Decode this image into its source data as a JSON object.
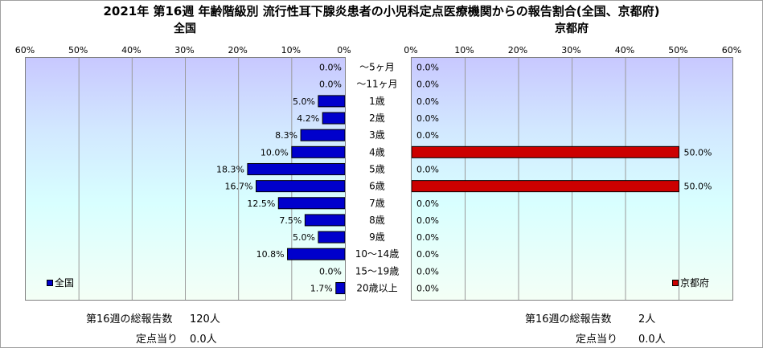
{
  "title": "2021年 第16週 年齢階級別 流行性耳下腺炎患者の小児科定点医療機関からの報告割合(全国、京都府)",
  "chart_data": [
    {
      "type": "bar",
      "orientation": "horizontal",
      "title": "全国",
      "categories": [
        "～5ヶ月",
        "～11ヶ月",
        "1歳",
        "2歳",
        "3歳",
        "4歳",
        "5歳",
        "6歳",
        "7歳",
        "8歳",
        "9歳",
        "10～14歳",
        "15～19歳",
        "20歳以上"
      ],
      "series": [
        {
          "name": "全国",
          "values": [
            0.0,
            0.0,
            5.0,
            4.2,
            8.3,
            10.0,
            18.3,
            16.7,
            12.5,
            7.5,
            5.0,
            10.8,
            0.0,
            1.7
          ]
        }
      ],
      "value_labels": [
        "0.0%",
        "0.0%",
        "5.0%",
        "4.2%",
        "8.3%",
        "10.0%",
        "18.3%",
        "16.7%",
        "12.5%",
        "7.5%",
        "5.0%",
        "10.8%",
        "0.0%",
        "1.7%"
      ],
      "xlim": [
        0,
        60
      ],
      "x_direction": "reversed",
      "ticks": [
        "60%",
        "50%",
        "40%",
        "30%",
        "20%",
        "10%",
        "0%"
      ],
      "color": "#0000cc",
      "grid": true,
      "legend": "bottom-left"
    },
    {
      "type": "bar",
      "orientation": "horizontal",
      "title": "京都府",
      "categories": [
        "～5ヶ月",
        "～11ヶ月",
        "1歳",
        "2歳",
        "3歳",
        "4歳",
        "5歳",
        "6歳",
        "7歳",
        "8歳",
        "9歳",
        "10～14歳",
        "15～19歳",
        "20歳以上"
      ],
      "series": [
        {
          "name": "京都府",
          "values": [
            0.0,
            0.0,
            0.0,
            0.0,
            0.0,
            50.0,
            0.0,
            50.0,
            0.0,
            0.0,
            0.0,
            0.0,
            0.0,
            0.0
          ]
        }
      ],
      "value_labels": [
        "0.0%",
        "0.0%",
        "0.0%",
        "0.0%",
        "0.0%",
        "50.0%",
        "0.0%",
        "50.0%",
        "0.0%",
        "0.0%",
        "0.0%",
        "0.0%",
        "0.0%",
        "0.0%"
      ],
      "xlim": [
        0,
        60
      ],
      "ticks": [
        "0%",
        "10%",
        "20%",
        "30%",
        "40%",
        "50%",
        "60%"
      ],
      "color": "#cc0000",
      "grid": true,
      "legend": "bottom-right"
    }
  ],
  "footer": {
    "national_total_label": "第16週の総報告数",
    "national_total_value": "120人",
    "national_per_label": "定点当り",
    "national_per_value": "0.0人",
    "kyoto_total_label": "第16週の総報告数",
    "kyoto_total_value": "2人",
    "kyoto_per_label": "定点当り",
    "kyoto_per_value": "0.0人"
  }
}
